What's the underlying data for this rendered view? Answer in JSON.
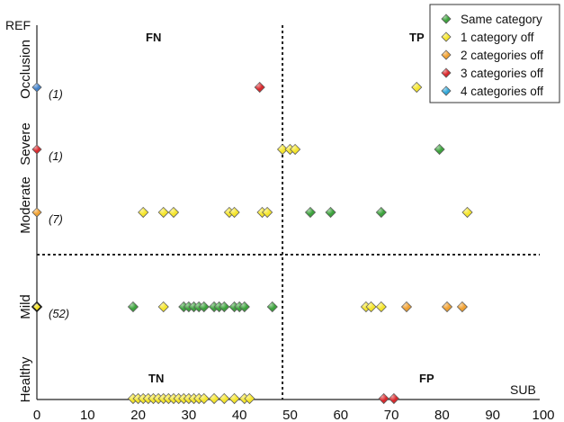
{
  "chart_data": {
    "type": "scatter",
    "xlabel": "SUB",
    "ylabel": "REF",
    "xlim": [
      0,
      100
    ],
    "x_ticks": [
      "0",
      "10",
      "20",
      "30",
      "40",
      "50",
      "60",
      "70",
      "80",
      "90",
      "100"
    ],
    "y_categories": [
      "Healthy",
      "Mild",
      "Moderate",
      "Severe",
      "Occlusion"
    ],
    "threshold_x": 48.5,
    "threshold_between": [
      "Mild",
      "Moderate"
    ],
    "quadrant_labels": {
      "top_left": "FN",
      "top_right": "TP",
      "bottom_left": "TN",
      "bottom_right": "FP"
    },
    "counts": [
      {
        "category": "Occlusion",
        "label": "(1)",
        "color": "#3f7fc8"
      },
      {
        "category": "Severe",
        "label": "(1)",
        "color": "#d8262a"
      },
      {
        "category": "Moderate",
        "label": "(7)",
        "color": "#f0a030"
      },
      {
        "category": "Mild",
        "label": "(52)",
        "color": "#f2de1e"
      }
    ],
    "legend": {
      "position": "top-right",
      "entries": [
        {
          "label": "Same category",
          "color": "#3aa13a"
        },
        {
          "label": "1 category off",
          "color": "#f5e52a"
        },
        {
          "label": "2 categories off",
          "color": "#f0a030"
        },
        {
          "label": "3 categories off",
          "color": "#d8262a"
        },
        {
          "label": "4 categories off",
          "color": "#2ea6d8"
        }
      ]
    },
    "series": [
      {
        "name": "Same category",
        "color": "#3aa13a",
        "points": [
          {
            "x": 79.5,
            "y": "Severe"
          },
          {
            "x": 54,
            "y": "Moderate"
          },
          {
            "x": 58,
            "y": "Moderate"
          },
          {
            "x": 68,
            "y": "Moderate"
          },
          {
            "x": 19,
            "y": "Mild"
          },
          {
            "x": 29,
            "y": "Mild"
          },
          {
            "x": 30,
            "y": "Mild"
          },
          {
            "x": 31,
            "y": "Mild"
          },
          {
            "x": 32,
            "y": "Mild"
          },
          {
            "x": 33,
            "y": "Mild"
          },
          {
            "x": 35,
            "y": "Mild"
          },
          {
            "x": 36,
            "y": "Mild"
          },
          {
            "x": 37,
            "y": "Mild"
          },
          {
            "x": 39,
            "y": "Mild"
          },
          {
            "x": 40,
            "y": "Mild"
          },
          {
            "x": 41,
            "y": "Mild"
          },
          {
            "x": 46.5,
            "y": "Mild"
          }
        ]
      },
      {
        "name": "1 category off",
        "color": "#f5e52a",
        "points": [
          {
            "x": 75,
            "y": "Occlusion"
          },
          {
            "x": 48.5,
            "y": "Severe"
          },
          {
            "x": 50,
            "y": "Severe"
          },
          {
            "x": 51,
            "y": "Severe"
          },
          {
            "x": 21,
            "y": "Moderate"
          },
          {
            "x": 25,
            "y": "Moderate"
          },
          {
            "x": 27,
            "y": "Moderate"
          },
          {
            "x": 38,
            "y": "Moderate"
          },
          {
            "x": 39,
            "y": "Moderate"
          },
          {
            "x": 44.5,
            "y": "Moderate"
          },
          {
            "x": 45.5,
            "y": "Moderate"
          },
          {
            "x": 85,
            "y": "Moderate"
          },
          {
            "x": 25,
            "y": "Mild"
          },
          {
            "x": 65,
            "y": "Mild"
          },
          {
            "x": 66,
            "y": "Mild"
          },
          {
            "x": 68,
            "y": "Mild"
          },
          {
            "x": 19,
            "y": "Healthy"
          },
          {
            "x": 20,
            "y": "Healthy"
          },
          {
            "x": 21,
            "y": "Healthy"
          },
          {
            "x": 22,
            "y": "Healthy"
          },
          {
            "x": 23,
            "y": "Healthy"
          },
          {
            "x": 24,
            "y": "Healthy"
          },
          {
            "x": 25,
            "y": "Healthy"
          },
          {
            "x": 26,
            "y": "Healthy"
          },
          {
            "x": 27,
            "y": "Healthy"
          },
          {
            "x": 28,
            "y": "Healthy"
          },
          {
            "x": 29,
            "y": "Healthy"
          },
          {
            "x": 30,
            "y": "Healthy"
          },
          {
            "x": 31,
            "y": "Healthy"
          },
          {
            "x": 32,
            "y": "Healthy"
          },
          {
            "x": 33,
            "y": "Healthy"
          },
          {
            "x": 35,
            "y": "Healthy"
          },
          {
            "x": 37,
            "y": "Healthy"
          },
          {
            "x": 39,
            "y": "Healthy"
          },
          {
            "x": 41,
            "y": "Healthy"
          },
          {
            "x": 42,
            "y": "Healthy"
          }
        ]
      },
      {
        "name": "2 categories off",
        "color": "#f0a030",
        "points": [
          {
            "x": 73,
            "y": "Mild"
          },
          {
            "x": 81,
            "y": "Mild"
          },
          {
            "x": 84,
            "y": "Mild"
          }
        ]
      },
      {
        "name": "3 categories off",
        "color": "#d8262a",
        "points": [
          {
            "x": 44,
            "y": "Occlusion"
          },
          {
            "x": 68.5,
            "y": "Healthy"
          },
          {
            "x": 70.5,
            "y": "Healthy"
          }
        ]
      }
    ]
  }
}
